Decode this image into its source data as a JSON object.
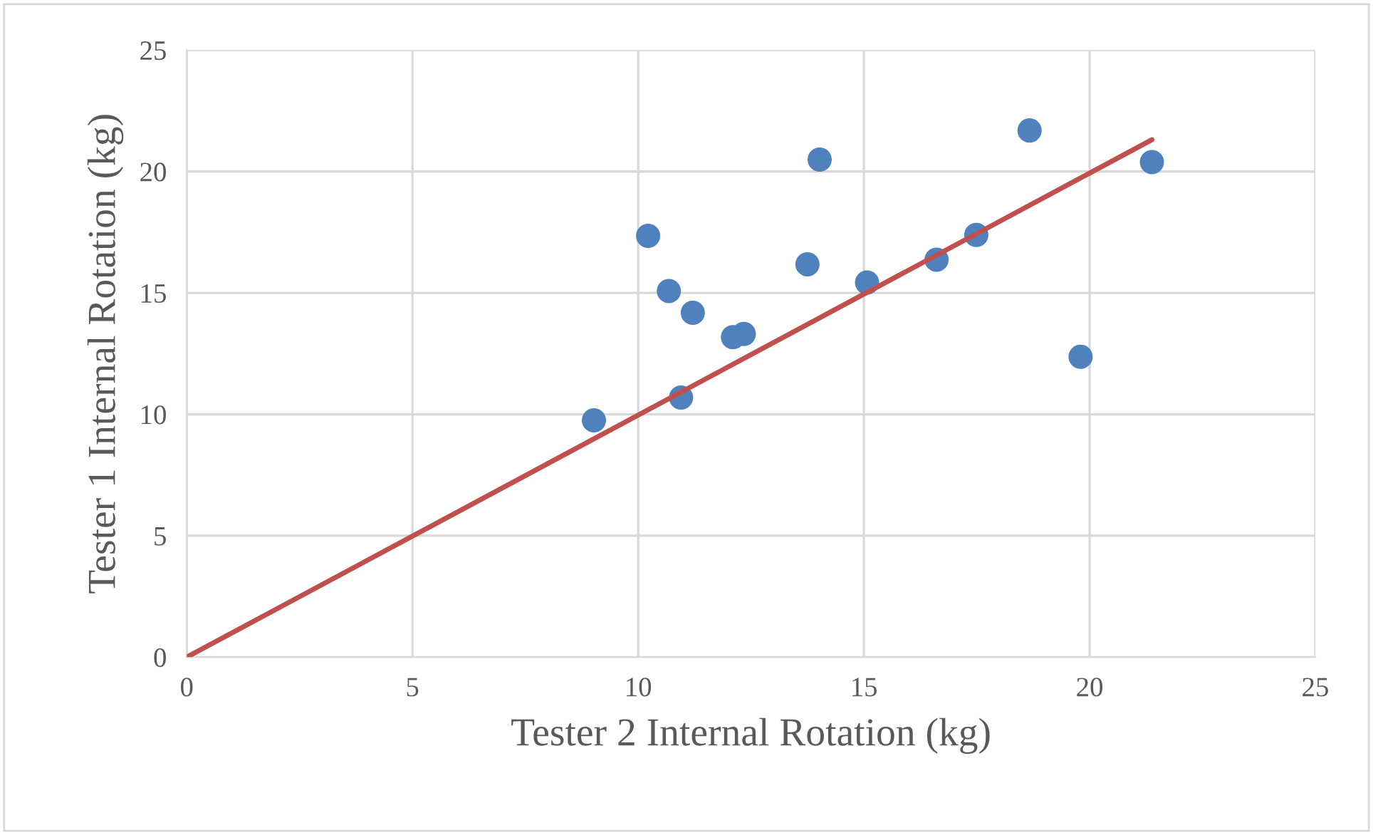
{
  "chart_data": {
    "type": "scatter",
    "xlabel": "Tester 2 Internal Rotation (kg)",
    "ylabel": "Tester 1 Internal Rotation (kg)",
    "xlim": [
      0,
      25
    ],
    "xticks": [
      0,
      5,
      10,
      15,
      20,
      25
    ],
    "ylim": [
      0,
      25
    ],
    "yticks": [
      0,
      5,
      10,
      15,
      20,
      25
    ],
    "grid": true,
    "marker": "circle",
    "series": [
      {
        "color": "#4f81bd",
        "x": [
          9.02,
          10.22,
          10.68,
          10.95,
          11.21,
          12.1,
          12.34,
          13.75,
          14.02,
          15.07,
          16.61,
          17.49,
          18.67,
          19.8,
          21.38
        ],
        "values": [
          9.75,
          17.35,
          15.08,
          10.69,
          14.18,
          13.18,
          13.31,
          16.18,
          20.49,
          15.43,
          16.37,
          17.39,
          21.69,
          12.37,
          20.39
        ]
      },
      {
        "type": "line",
        "color": "#c0504d",
        "marker": "none",
        "line_style": "solid",
        "x": [
          0,
          21.38
        ],
        "values": [
          0,
          21.31
        ]
      }
    ]
  }
}
